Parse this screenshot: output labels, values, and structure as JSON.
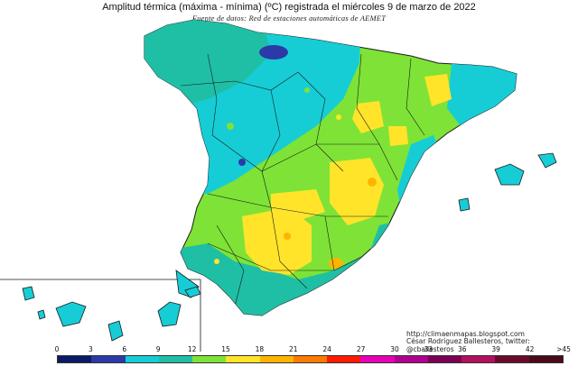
{
  "header": {
    "title": "Amplitud térmica (máxima - mínima) (ºC) registrada el miércoles 9 de marzo de 2022",
    "subtitle": "Fuente de datos: Red de estaciones automáticas de AEMET"
  },
  "credits": {
    "url": "http://climaenmapas.blogspot.com",
    "author": "César Rodríguez Ballesteros, twitter: @cballesteros"
  },
  "legend": {
    "ticks": [
      "0",
      "3",
      "6",
      "9",
      "12",
      "15",
      "18",
      "21",
      "24",
      "27",
      "30",
      "33",
      "36",
      "39",
      "42",
      ">45"
    ],
    "colors": [
      "#0d1a66",
      "#2c3aa8",
      "#16cdd6",
      "#1fbfa6",
      "#7ee336",
      "#ffe42a",
      "#ffb400",
      "#ff7a00",
      "#ff1a00",
      "#e800b8",
      "#b00090",
      "#7a0055",
      "#b3105e",
      "#6a0b2d",
      "#4a0a1a"
    ]
  },
  "palette": {
    "low": "#16cdd6",
    "medium_low": "#1fbfa6",
    "medium": "#7ee336",
    "high": "#ffe42a",
    "very_high": "#ffb400",
    "min": "#2c3aa8",
    "border": "#1a1a1a"
  },
  "chart_data": {
    "type": "heatmap",
    "variable": "Amplitud térmica (ºC)",
    "date": "miércoles 9 de marzo de 2022",
    "scale_min": 0,
    "scale_max": 45,
    "scale_step": 3
  }
}
